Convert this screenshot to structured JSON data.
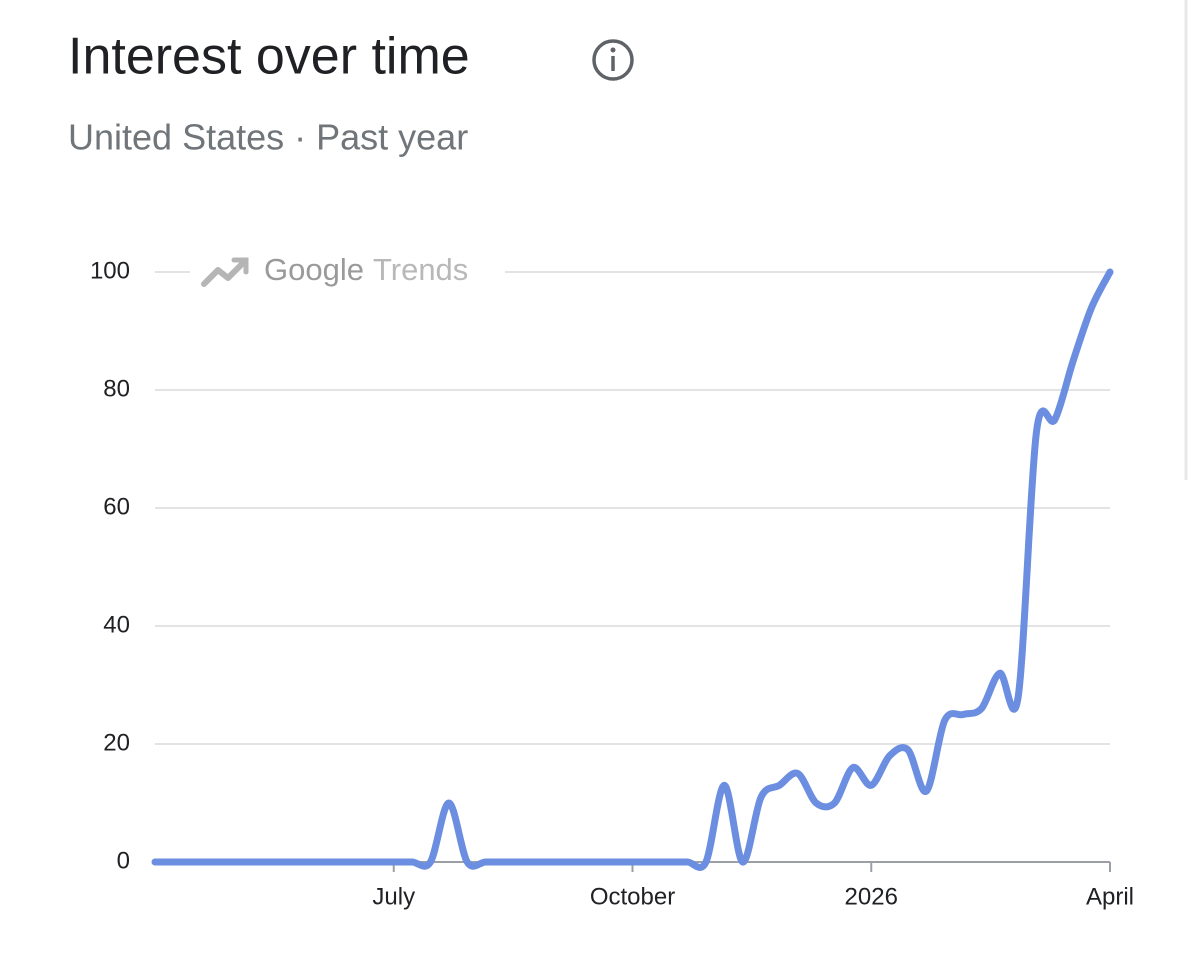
{
  "chart_data": {
    "type": "line",
    "title": "Interest over time",
    "subtitle": "United States · Past year",
    "watermark": [
      "Google",
      "Trends"
    ],
    "categories": [
      null,
      null,
      null,
      null,
      null,
      null,
      null,
      null,
      null,
      null,
      null,
      null,
      null,
      "July",
      null,
      null,
      null,
      null,
      null,
      null,
      null,
      null,
      null,
      null,
      null,
      null,
      "October",
      null,
      null,
      null,
      null,
      null,
      null,
      null,
      null,
      null,
      null,
      null,
      null,
      "2026",
      null,
      null,
      null,
      null,
      null,
      null,
      null,
      null,
      null,
      null,
      null,
      null,
      "April"
    ],
    "values": [
      0,
      0,
      0,
      0,
      0,
      0,
      0,
      0,
      0,
      0,
      0,
      0,
      0,
      0,
      0,
      0,
      10,
      0,
      0,
      0,
      0,
      0,
      0,
      0,
      0,
      0,
      0,
      0,
      0,
      0,
      0,
      13,
      0,
      11,
      13,
      15,
      10,
      10,
      16,
      13,
      18,
      19,
      12,
      24,
      25,
      26,
      32,
      28,
      73,
      75,
      85,
      94,
      100
    ],
    "color": "#6b8ee0",
    "ylim": [
      0,
      100
    ],
    "yticks": [
      0,
      20,
      40,
      60,
      80,
      100
    ],
    "grid": true
  }
}
